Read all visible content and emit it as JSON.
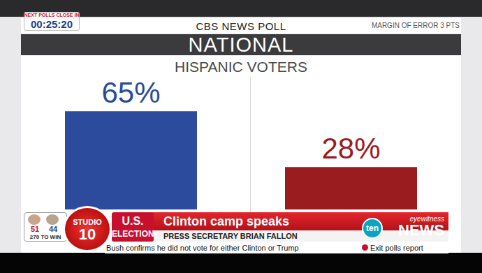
{
  "chart_data": {
    "type": "bar",
    "title": "NATIONAL",
    "subtitle": "HISPANIC VOTERS",
    "annotations": [
      "CBS NEWS POLL",
      "MARGIN OF ERROR 3 PTS"
    ],
    "categories": [
      null,
      null
    ],
    "values": [
      65,
      28
    ],
    "value_labels": [
      "65%",
      "28%"
    ],
    "colors": [
      "#2c4b9c",
      "#9b1c1f"
    ],
    "data_labels": true,
    "tick_labels": false,
    "ylim": [
      0,
      90
    ],
    "grid": false
  },
  "broadcast": {
    "countdown": {
      "label": "NEXT POLLS CLOSE IN",
      "time": "00:25:20"
    },
    "scoreboard": {
      "values": [
        51,
        44
      ],
      "caption": "270 TO WIN"
    },
    "show": "STUDIO 10",
    "segment": "U.S. ELECTION",
    "headline": "Clinton camp speaks",
    "subheadline": "PRESS SECRETARY BRIAN FALLON",
    "logo": {
      "channel": "ten",
      "top": "eyewitness",
      "bottom": "NEWS"
    },
    "ticker": "Bush confirms he did not vote for either Clinton or Trump",
    "ticker_right": "Exit polls report"
  }
}
